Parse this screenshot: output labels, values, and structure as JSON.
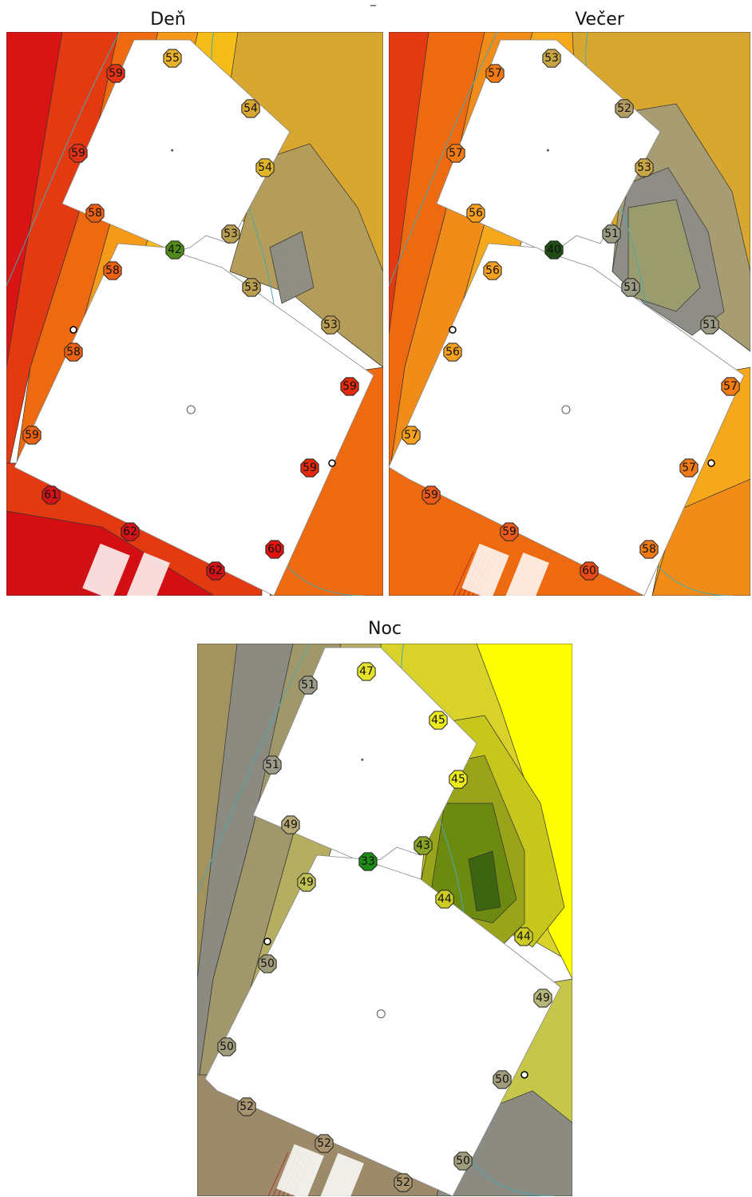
{
  "top_mark": "_",
  "panels": {
    "day": {
      "title": "Deň",
      "labels": [
        {
          "v": "55",
          "c": "#e7b12a"
        },
        {
          "v": "59",
          "c": "#e23317"
        },
        {
          "v": "54",
          "c": "#d7a731"
        },
        {
          "v": "59",
          "c": "#e23317"
        },
        {
          "v": "54",
          "c": "#e0b529"
        },
        {
          "v": "58",
          "c": "#ed6113"
        },
        {
          "v": "53",
          "c": "#b99d50"
        },
        {
          "v": "42",
          "c": "#4f8a1a"
        },
        {
          "v": "58",
          "c": "#ed6113"
        },
        {
          "v": "53",
          "c": "#b99d50"
        },
        {
          "v": "53",
          "c": "#b99d50"
        },
        {
          "v": "58",
          "c": "#ed6113"
        },
        {
          "v": "59",
          "c": "#e42a0c"
        },
        {
          "v": "59",
          "c": "#ed6113"
        },
        {
          "v": "59",
          "c": "#e42a0c"
        },
        {
          "v": "61",
          "c": "#d0141a"
        },
        {
          "v": "62",
          "c": "#d0141a"
        },
        {
          "v": "60",
          "c": "#e3130f"
        },
        {
          "v": "62",
          "c": "#d0141a"
        }
      ]
    },
    "evening": {
      "title": "Večer",
      "labels": [
        {
          "v": "53",
          "c": "#c8a544"
        },
        {
          "v": "57",
          "c": "#f07a15"
        },
        {
          "v": "52",
          "c": "#b29c63"
        },
        {
          "v": "57",
          "c": "#f07a15"
        },
        {
          "v": "53",
          "c": "#c8a544"
        },
        {
          "v": "56",
          "c": "#f5a020"
        },
        {
          "v": "51",
          "c": "#9b9a84"
        },
        {
          "v": "40",
          "c": "#214d14"
        },
        {
          "v": "56",
          "c": "#f5a020"
        },
        {
          "v": "51",
          "c": "#9b9a84"
        },
        {
          "v": "51",
          "c": "#9b9a84"
        },
        {
          "v": "56",
          "c": "#f5a020"
        },
        {
          "v": "57",
          "c": "#f07a15"
        },
        {
          "v": "57",
          "c": "#f5a020"
        },
        {
          "v": "57",
          "c": "#f07a15"
        },
        {
          "v": "59",
          "c": "#eb5a1a"
        },
        {
          "v": "59",
          "c": "#eb5a1a"
        },
        {
          "v": "58",
          "c": "#f07a15"
        },
        {
          "v": "60",
          "c": "#e84a18"
        }
      ]
    },
    "night": {
      "title": "Noc",
      "labels": [
        {
          "v": "47",
          "c": "#e5e22a"
        },
        {
          "v": "51",
          "c": "#9d9a86"
        },
        {
          "v": "45",
          "c": "#eaea1c"
        },
        {
          "v": "51",
          "c": "#9d9a86"
        },
        {
          "v": "45",
          "c": "#eaea1c"
        },
        {
          "v": "49",
          "c": "#b3a876"
        },
        {
          "v": "43",
          "c": "#8ca425"
        },
        {
          "v": "33",
          "c": "#1e8a18"
        },
        {
          "v": "49",
          "c": "#c1c255"
        },
        {
          "v": "44",
          "c": "#cccc22"
        },
        {
          "v": "44",
          "c": "#cccc22"
        },
        {
          "v": "50",
          "c": "#a19c7c"
        },
        {
          "v": "49",
          "c": "#b8b77a"
        },
        {
          "v": "50",
          "c": "#a19c7c"
        },
        {
          "v": "50",
          "c": "#a19c7c"
        },
        {
          "v": "52",
          "c": "#a99470"
        },
        {
          "v": "52",
          "c": "#a99470"
        },
        {
          "v": "50",
          "c": "#a19c7c"
        },
        {
          "v": "52",
          "c": "#a99470"
        }
      ]
    }
  }
}
